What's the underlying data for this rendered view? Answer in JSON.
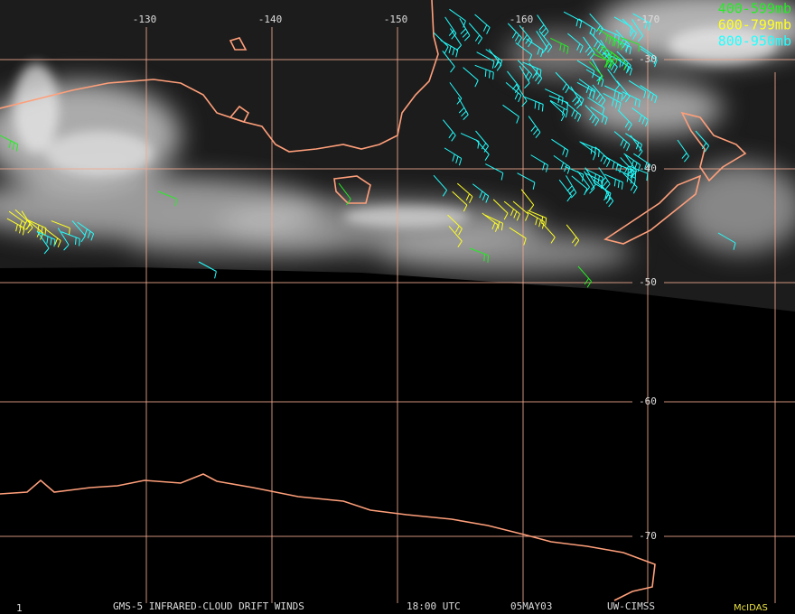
{
  "map": {
    "longitude_labels": [
      "-130",
      "-140",
      "-150",
      "-160",
      "-170"
    ],
    "latitude_labels": [
      "-30",
      "-40",
      "-50",
      "-60",
      "-70"
    ],
    "legend": [
      {
        "label": "400-599mb",
        "color": "#22ee22"
      },
      {
        "label": "600-799mb",
        "color": "#ffff22"
      },
      {
        "label": "800-950mb",
        "color": "#22ffff"
      }
    ],
    "footer": {
      "frame": "1",
      "product": "GMS-5 INFRARED-CLOUD DRIFT WINDS",
      "time": "18:00 UTC",
      "date": "05MAY03",
      "source": "UW-CIMSS",
      "software": "McIDAS"
    }
  }
}
